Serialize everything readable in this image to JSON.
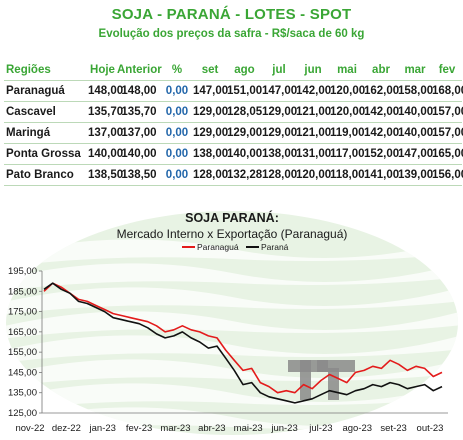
{
  "header": {
    "title": "SOJA - PARANÁ - LOTES - SPOT",
    "subtitle": "Evolução dos preços da safra - R$/saca de 60 kg"
  },
  "table": {
    "columns": [
      "Regiões",
      "Hoje",
      "Anterior",
      "%",
      "set",
      "ago",
      "jul",
      "jun",
      "mai",
      "abr",
      "mar",
      "fev"
    ],
    "rows": [
      [
        "Paranaguá",
        "148,00",
        "148,00",
        "0,00",
        "147,00",
        "151,00",
        "147,00",
        "142,00",
        "120,00",
        "162,00",
        "158,00",
        "168,00"
      ],
      [
        "Cascavel",
        "135,70",
        "135,70",
        "0,00",
        "129,00",
        "128,05",
        "129,00",
        "121,00",
        "120,00",
        "142,00",
        "140,00",
        "157,00"
      ],
      [
        "Maringá",
        "137,00",
        "137,00",
        "0,00",
        "129,00",
        "129,00",
        "129,00",
        "121,00",
        "119,00",
        "142,00",
        "140,00",
        "157,00"
      ],
      [
        "Ponta Grossa",
        "140,00",
        "140,00",
        "0,00",
        "138,00",
        "140,00",
        "138,00",
        "131,00",
        "117,00",
        "152,00",
        "147,00",
        "165,00"
      ],
      [
        "Pato Branco",
        "138,50",
        "138,50",
        "0,00",
        "128,00",
        "132,28",
        "128,00",
        "120,00",
        "118,00",
        "141,00",
        "139,00",
        "156,00"
      ]
    ]
  },
  "colors": {
    "accent": "#3aa635",
    "percent": "#2266aa",
    "paranagua": "#e31b1b",
    "parana": "#111111"
  },
  "chart_data": {
    "type": "line",
    "title": "SOJA PARANÁ:",
    "subtitle": "Mercado Interno x Exportação (Paranaguá)",
    "legend_placement": "top-center",
    "ylim": [
      125,
      195
    ],
    "yticks": [
      125,
      135,
      145,
      155,
      165,
      175,
      185,
      195
    ],
    "ytick_labels": [
      "125,00",
      "135,00",
      "145,00",
      "155,00",
      "165,00",
      "175,00",
      "185,00",
      "195,00"
    ],
    "xtick_labels": [
      "nov-22",
      "dez-22",
      "jan-23",
      "fev-23",
      "mar-23",
      "abr-23",
      "mai-23",
      "jun-23",
      "jul-23",
      "ago-23",
      "set-23",
      "out-23"
    ],
    "x": [
      "nov-22",
      "nov-22",
      "nov-22",
      "nov-22",
      "dez-22",
      "dez-22",
      "dez-22",
      "dez-22",
      "jan-23",
      "jan-23",
      "jan-23",
      "jan-23",
      "fev-23",
      "fev-23",
      "fev-23",
      "fev-23",
      "mar-23",
      "mar-23",
      "mar-23",
      "mar-23",
      "abr-23",
      "abr-23",
      "abr-23",
      "abr-23",
      "mai-23",
      "mai-23",
      "mai-23",
      "mai-23",
      "jun-23",
      "jun-23",
      "jun-23",
      "jun-23",
      "jul-23",
      "jul-23",
      "jul-23",
      "jul-23",
      "ago-23",
      "ago-23",
      "ago-23",
      "ago-23",
      "set-23",
      "set-23",
      "set-23",
      "set-23",
      "out-23",
      "out-23",
      "out-23"
    ],
    "series": [
      {
        "name": "Paranaguá",
        "color": "#e31b1b",
        "values": [
          185,
          189,
          187,
          184,
          181,
          180,
          178,
          176,
          174,
          173,
          172,
          171,
          170,
          168,
          165,
          166,
          168,
          166,
          165,
          163,
          162,
          156,
          151,
          146,
          147,
          140,
          138,
          135,
          136,
          135,
          139,
          137,
          141,
          144,
          142,
          140,
          145,
          146,
          148,
          147,
          151,
          149,
          146,
          148,
          147,
          143,
          145
        ]
      },
      {
        "name": "Paraná",
        "color": "#111111",
        "values": [
          186,
          189,
          186,
          184,
          180,
          179,
          177,
          175,
          172,
          171,
          170,
          169,
          167,
          164,
          162,
          163,
          165,
          162,
          160,
          157,
          158,
          152,
          146,
          139,
          140,
          135,
          133,
          132,
          131,
          130,
          131,
          132,
          134,
          136,
          135,
          134,
          136,
          137,
          139,
          138,
          140,
          139,
          137,
          138,
          139,
          136,
          138
        ]
      }
    ]
  }
}
